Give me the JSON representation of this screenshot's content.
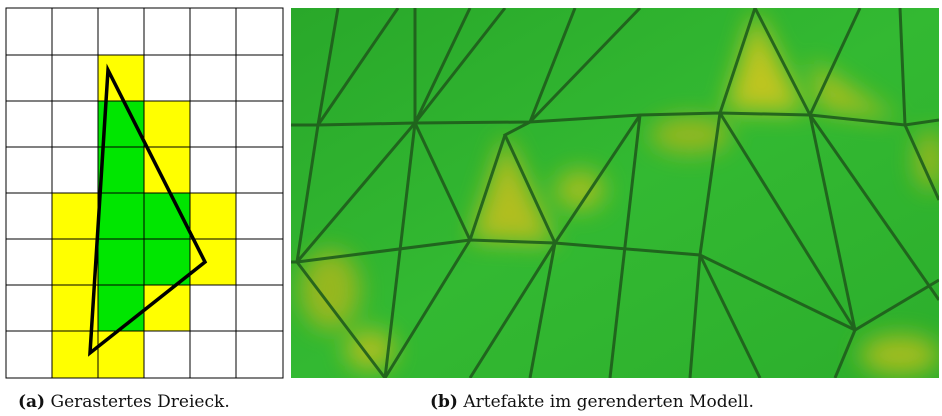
{
  "subfigures": [
    {
      "label": "(a)",
      "caption": "Gerastertes Dreieck."
    },
    {
      "label": "(b)",
      "caption": "Artefakte im gerenderten Modell."
    }
  ]
}
